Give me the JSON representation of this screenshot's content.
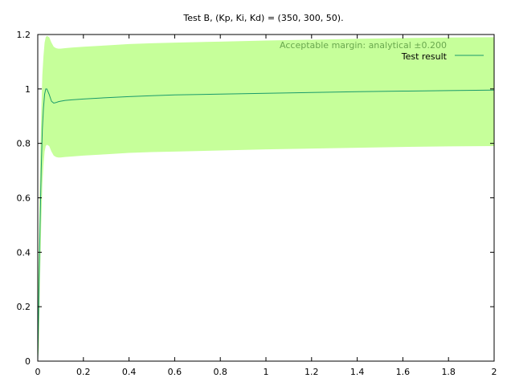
{
  "chart_data": {
    "type": "line",
    "title": "Test B, (Kp, Ki, Kd) = (350, 300, 50).",
    "xlabel": "",
    "ylabel": "",
    "xlim": [
      0,
      2
    ],
    "ylim": [
      0,
      1.2
    ],
    "x_ticks": [
      "0",
      "0.2",
      "0.4",
      "0.6",
      "0.8",
      "1",
      "1.2",
      "1.4",
      "1.6",
      "1.8",
      "2"
    ],
    "y_ticks": [
      "0",
      "0.2",
      "0.4",
      "0.6",
      "0.8",
      "1",
      "1.2"
    ],
    "grid": false,
    "legend_position": "top-right",
    "colors": {
      "band": "#c6ff9a",
      "line": "#1a9a6a",
      "band_label": "#6aa84f"
    },
    "series": [
      {
        "name": "Acceptable margin: analytical ±0.200",
        "kind": "band",
        "x": [
          0,
          0.005,
          0.01,
          0.015,
          0.02,
          0.025,
          0.03,
          0.035,
          0.04,
          0.05,
          0.06,
          0.07,
          0.08,
          0.09,
          0.1,
          0.12,
          0.15,
          0.2,
          0.3,
          0.4,
          0.5,
          0.6,
          0.8,
          1.0,
          1.2,
          1.4,
          1.6,
          1.8,
          2.0
        ],
        "upper": [
          0.2,
          0.45,
          0.7,
          0.9,
          1.05,
          1.12,
          1.17,
          1.19,
          1.195,
          1.19,
          1.17,
          1.155,
          1.15,
          1.148,
          1.148,
          1.15,
          1.152,
          1.155,
          1.16,
          1.165,
          1.168,
          1.17,
          1.174,
          1.178,
          1.181,
          1.184,
          1.187,
          1.189,
          1.19
        ],
        "lower": [
          -0.2,
          0.05,
          0.3,
          0.5,
          0.65,
          0.72,
          0.77,
          0.79,
          0.795,
          0.79,
          0.77,
          0.755,
          0.75,
          0.748,
          0.748,
          0.75,
          0.752,
          0.755,
          0.76,
          0.765,
          0.768,
          0.77,
          0.774,
          0.778,
          0.781,
          0.784,
          0.787,
          0.789,
          0.79
        ]
      },
      {
        "name": "Test result",
        "kind": "line",
        "x": [
          0,
          0.005,
          0.01,
          0.015,
          0.02,
          0.025,
          0.03,
          0.035,
          0.04,
          0.05,
          0.06,
          0.07,
          0.08,
          0.09,
          0.1,
          0.12,
          0.15,
          0.2,
          0.3,
          0.4,
          0.5,
          0.6,
          0.8,
          1.0,
          1.2,
          1.4,
          1.6,
          1.8,
          2.0
        ],
        "y": [
          0,
          0.25,
          0.5,
          0.7,
          0.85,
          0.93,
          0.98,
          1.0,
          1.0,
          0.98,
          0.955,
          0.948,
          0.95,
          0.953,
          0.955,
          0.958,
          0.96,
          0.963,
          0.968,
          0.972,
          0.975,
          0.978,
          0.981,
          0.984,
          0.987,
          0.99,
          0.992,
          0.994,
          0.996
        ]
      }
    ]
  }
}
